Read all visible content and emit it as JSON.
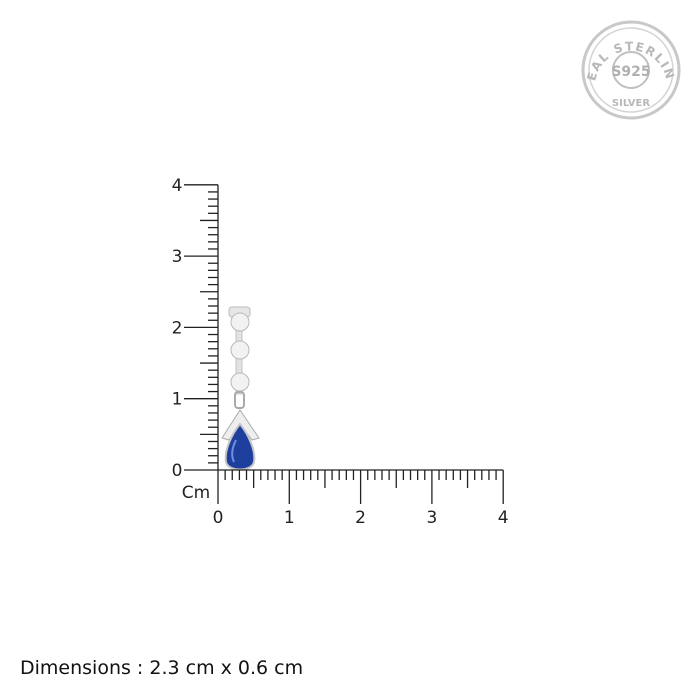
{
  "seal": {
    "top_text": "REAL STERLING",
    "center_text": "S925",
    "bottom_text": "SILVER"
  },
  "ruler": {
    "unit": "Cm",
    "x_ticks": [
      "0",
      "1",
      "2",
      "3",
      "4"
    ],
    "y_ticks": [
      "0",
      "1",
      "2",
      "3",
      "4"
    ],
    "range_cm": [
      0,
      4
    ],
    "minor_step_cm": 0.1
  },
  "product": {
    "stone_color": "#1f3f9e",
    "metal_color": "#d9d9d9"
  },
  "dimensions_text": "Dimensions : 2.3 cm x 0.6 cm"
}
